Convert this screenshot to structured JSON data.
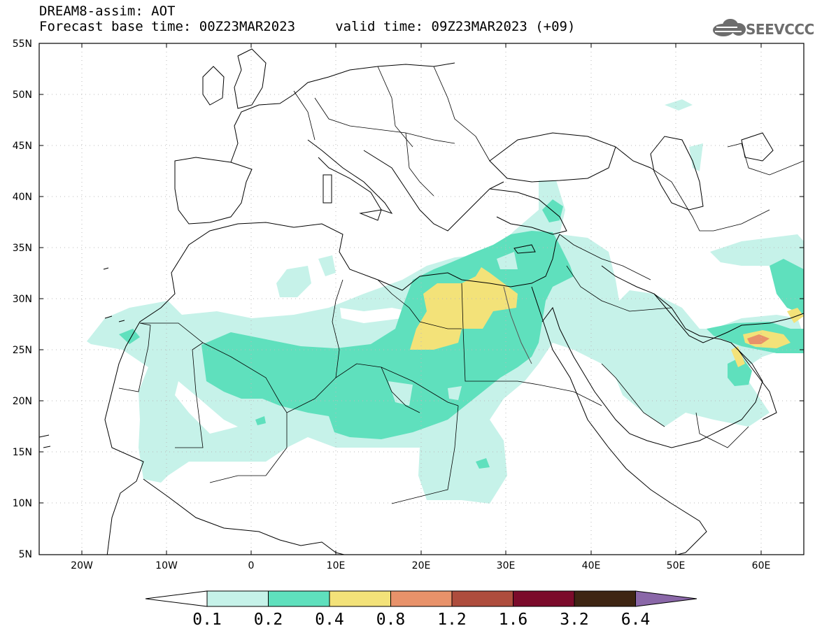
{
  "header": {
    "title_line1": "DREAM8-assim: AOT",
    "title_line2": "Forecast base time: 00Z23MAR2023     valid time: 09Z23MAR2023 (+09)",
    "logo_text": "SEEVCCC"
  },
  "map": {
    "lon_range": [
      -25,
      65
    ],
    "lat_range": [
      5,
      55
    ],
    "lat_ticks": [
      "55N",
      "50N",
      "45N",
      "40N",
      "35N",
      "30N",
      "25N",
      "20N",
      "15N",
      "10N",
      "5N"
    ],
    "lon_ticks": [
      "20W",
      "10W",
      "0",
      "10E",
      "20E",
      "30E",
      "40E",
      "50E",
      "60E"
    ]
  },
  "colorbar": {
    "labels": [
      "0.1",
      "0.2",
      "0.4",
      "0.8",
      "1.2",
      "1.6",
      "3.2",
      "6.4"
    ],
    "colors": [
      "#c6f2e9",
      "#5fe0bd",
      "#f3e279",
      "#e8926a",
      "#ae4d3d",
      "#7b0b2b",
      "#3e2513",
      "#8a67a8"
    ]
  },
  "colors": {
    "c01": "#c6f2e9",
    "c02": "#5fe0bd",
    "c04": "#f3e279",
    "c08": "#e8926a",
    "grid": "#bbbbbb"
  }
}
